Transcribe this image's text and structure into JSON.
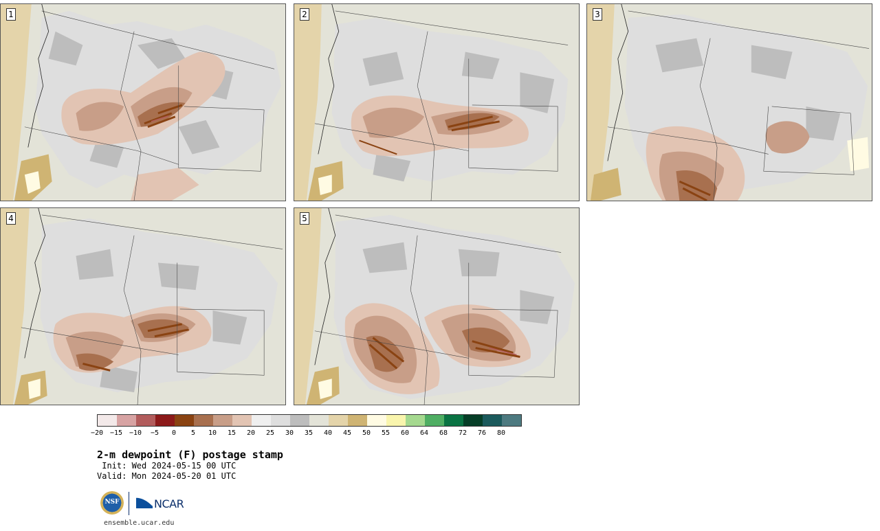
{
  "panels": [
    {
      "id": "1"
    },
    {
      "id": "2"
    },
    {
      "id": "3"
    },
    {
      "id": "4"
    },
    {
      "id": "5"
    }
  ],
  "colorbar": {
    "colors": [
      "#f3e9e9",
      "#d7a3a3",
      "#b25c5c",
      "#8c1a1a",
      "#8a4312",
      "#a8704f",
      "#c89e88",
      "#e2c4b3",
      "#efefef",
      "#dedede",
      "#bdbdbd",
      "#e3e3d8",
      "#e4d4aa",
      "#cfb473",
      "#fffbe3",
      "#f9f5ad",
      "#a5d98f",
      "#4fae63",
      "#0a7343",
      "#063e27",
      "#1b5a5c",
      "#4d7a80"
    ],
    "tick_labels": [
      "−20",
      "−15",
      "−10",
      "−5",
      "0",
      "5",
      "10",
      "15",
      "20",
      "25",
      "30",
      "35",
      "40",
      "45",
      "50",
      "55",
      "60",
      "64",
      "68",
      "72",
      "76",
      "80"
    ]
  },
  "title": "2-m dewpoint (F) postage stamp",
  "init_text": " Init: Wed 2024-05-15 00 UTC",
  "valid_text": "Valid: Mon 2024-05-20 01 UTC",
  "logos": {
    "nsf": "NSF",
    "ncar": "NCAR"
  },
  "website": "ensemble.ucar.edu"
}
